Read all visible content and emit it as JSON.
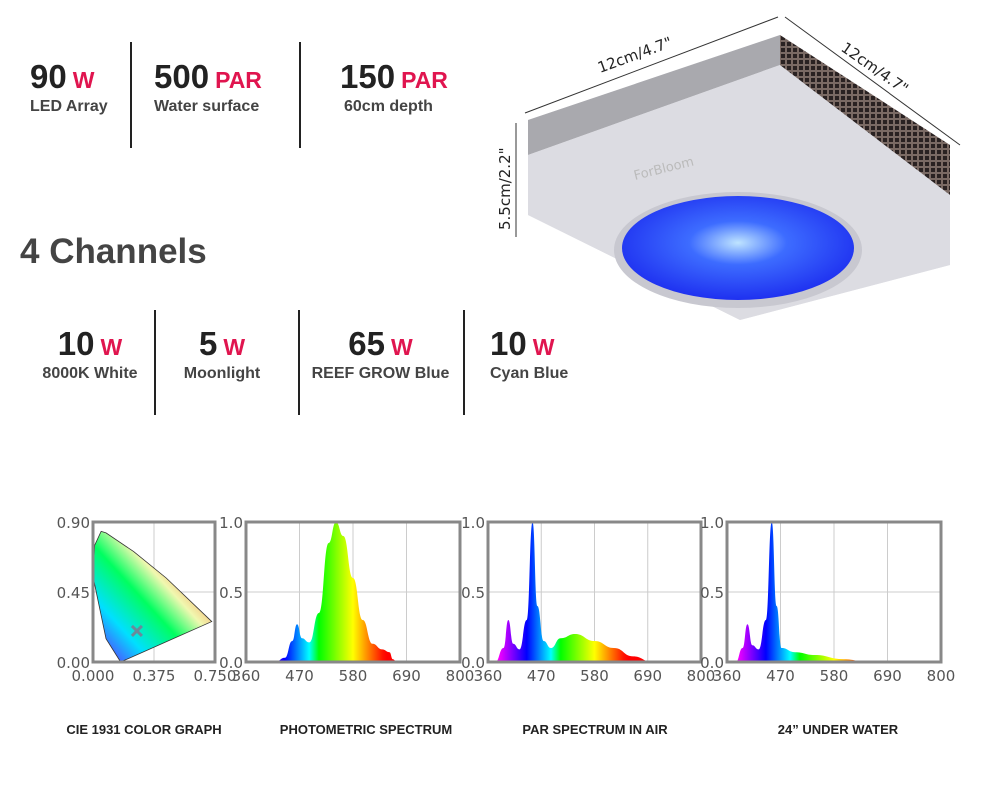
{
  "specs": [
    {
      "value": "90",
      "unit": "W",
      "label": "LED Array"
    },
    {
      "value": "500",
      "unit": "PAR",
      "label": "Water surface"
    },
    {
      "value": "150",
      "unit": "PAR",
      "label": "60cm depth"
    }
  ],
  "channels_title": "4 Channels",
  "channels": [
    {
      "value": "10",
      "unit": "W",
      "label": "8000K White"
    },
    {
      "value": "5",
      "unit": "W",
      "label": "Moonlight"
    },
    {
      "value": "65",
      "unit": "W",
      "label": "REEF GROW Blue"
    },
    {
      "value": "10",
      "unit": "W",
      "label": "Cyan Blue"
    }
  ],
  "product": {
    "width_label": "12cm/4.7\"",
    "depth_label": "12cm/4.7\"",
    "height_label": "5.5cm/2.2\"",
    "brand": "ForBloom"
  },
  "colors": {
    "accent": "#e0154f",
    "text": "#222222",
    "light": "#2a3cff"
  },
  "chart_data": [
    {
      "type": "scatter",
      "title": "CIE 1931 COLOR GRAPH",
      "xticks": [
        "0.000",
        "0.375",
        "0.750"
      ],
      "yticks": [
        "0.00",
        "0.45",
        "0.90"
      ],
      "xlim": [
        0,
        0.75
      ],
      "ylim": [
        0,
        0.9
      ],
      "point": {
        "x": 0.27,
        "y": 0.2
      }
    },
    {
      "type": "area",
      "title": "PHOTOMETRIC SPECTRUM",
      "xticks": [
        "360",
        "470",
        "580",
        "690",
        "800"
      ],
      "yticks": [
        "0.0",
        "0.5",
        "1.0"
      ],
      "xlim": [
        360,
        800
      ],
      "ylim": [
        0,
        1
      ],
      "x": [
        420,
        440,
        455,
        465,
        475,
        490,
        510,
        530,
        545,
        560,
        580,
        600,
        620,
        640,
        655,
        662,
        670
      ],
      "y": [
        0,
        0.03,
        0.15,
        0.27,
        0.17,
        0.14,
        0.35,
        0.85,
        1.0,
        0.9,
        0.6,
        0.3,
        0.13,
        0.09,
        0.07,
        0.02,
        0
      ]
    },
    {
      "type": "area",
      "title": "PAR SPECTRUM IN AIR",
      "xticks": [
        "360",
        "470",
        "580",
        "690",
        "800"
      ],
      "yticks": [
        "0.0",
        "0.5",
        "1.0"
      ],
      "xlim": [
        360,
        800
      ],
      "ylim": [
        0,
        1
      ],
      "x": [
        375,
        392,
        402,
        412,
        425,
        440,
        452,
        462,
        475,
        490,
        510,
        540,
        580,
        620,
        660,
        700
      ],
      "y": [
        0,
        0.1,
        0.3,
        0.13,
        0.09,
        0.3,
        1.0,
        0.4,
        0.15,
        0.1,
        0.17,
        0.2,
        0.15,
        0.1,
        0.04,
        0
      ]
    },
    {
      "type": "area",
      "title": "24”  UNDER WATER",
      "xticks": [
        "360",
        "470",
        "580",
        "690",
        "800"
      ],
      "yticks": [
        "0.0",
        "0.5",
        "1.0"
      ],
      "xlim": [
        360,
        800
      ],
      "ylim": [
        0,
        1
      ],
      "x": [
        378,
        392,
        402,
        412,
        425,
        440,
        452,
        462,
        472,
        500,
        540,
        600,
        650
      ],
      "y": [
        0,
        0.1,
        0.27,
        0.12,
        0.09,
        0.3,
        1.0,
        0.4,
        0.1,
        0.07,
        0.05,
        0.02,
        0
      ]
    }
  ]
}
